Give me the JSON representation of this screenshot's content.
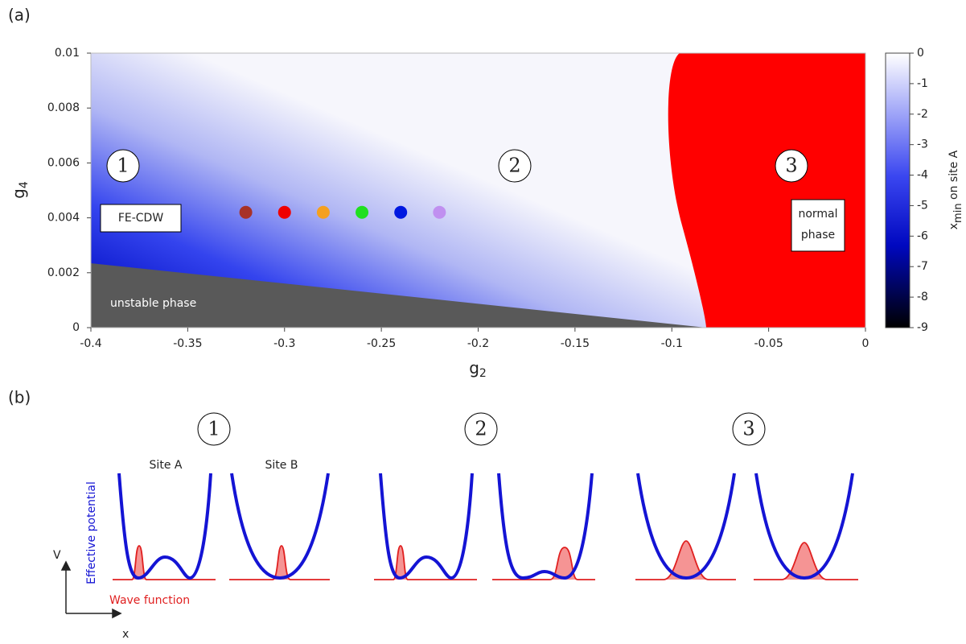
{
  "chart_data": {
    "type": "heatmap",
    "panel_label": "(a)",
    "x_label": {
      "main": "g",
      "sub": "2"
    },
    "y_label": {
      "main": "g",
      "sub": "4"
    },
    "xlim": [
      -0.4,
      0
    ],
    "xticks": [
      -0.4,
      -0.35,
      -0.3,
      -0.25,
      -0.2,
      -0.15,
      -0.1,
      -0.05,
      0
    ],
    "ylim": [
      0,
      0.01
    ],
    "yticks": [
      0,
      0.002,
      0.004,
      0.006,
      0.008,
      0.01
    ],
    "colorbar": {
      "label": {
        "main": "x",
        "sub": "min",
        "rest": " on site A"
      },
      "clim": [
        -9,
        0
      ],
      "ticks": [
        0,
        -1,
        -2,
        -3,
        -4,
        -5,
        -6,
        -7,
        -8,
        -9
      ]
    },
    "points": {
      "x": [
        -0.32,
        -0.3,
        -0.28,
        -0.26,
        -0.24,
        -0.22
      ],
      "y": [
        0.0042,
        0.0042,
        0.0042,
        0.0042,
        0.0042,
        0.0042
      ],
      "colors": [
        "#a83228",
        "#f00000",
        "#f5a020",
        "#20e020",
        "#0018e0",
        "#c090f0"
      ]
    },
    "regions": [
      "1",
      "2",
      "3"
    ],
    "annotations": {
      "fe_cdw": "FE-CDW",
      "unstable": "unstable phase",
      "normal": [
        "normal",
        "phase"
      ]
    }
  },
  "panel_b": {
    "panel_label": "(b)",
    "regions": [
      "1",
      "2",
      "3"
    ],
    "site_a": "Site A",
    "site_b": "Site B",
    "potential_label": "Effective potential",
    "wave_label": "Wave function",
    "v_axis": "V",
    "x_axis": "x"
  }
}
